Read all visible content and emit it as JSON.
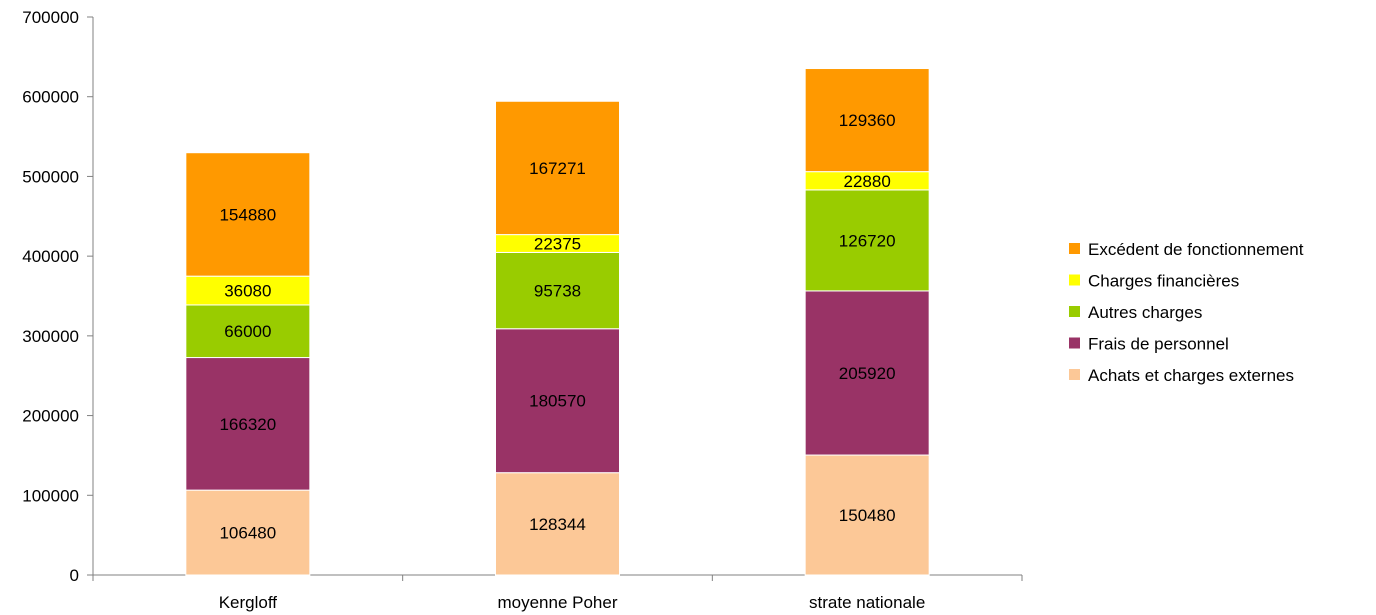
{
  "chart_data": {
    "type": "bar",
    "stacked": true,
    "categories": [
      "Kergloff",
      "moyenne Poher",
      "strate nationale"
    ],
    "series": [
      {
        "name": "Achats et charges externes",
        "color": "#FCC897",
        "values": [
          106480,
          128344,
          150480
        ]
      },
      {
        "name": "Frais de personnel",
        "color": "#993366",
        "values": [
          166320,
          180570,
          205920
        ]
      },
      {
        "name": "Autres charges",
        "color": "#99CC00",
        "values": [
          66000,
          95738,
          126720
        ]
      },
      {
        "name": "Charges financières",
        "color": "#FFFF00",
        "values": [
          36080,
          22375,
          22880
        ]
      },
      {
        "name": "Excédent de fonctionnement",
        "color": "#FF9900",
        "values": [
          154880,
          167271,
          129360
        ]
      }
    ],
    "yticks": [
      0,
      100000,
      200000,
      300000,
      400000,
      500000,
      600000,
      700000
    ],
    "ylim": [
      0,
      700000
    ],
    "legend_position": "right",
    "grid": false
  }
}
